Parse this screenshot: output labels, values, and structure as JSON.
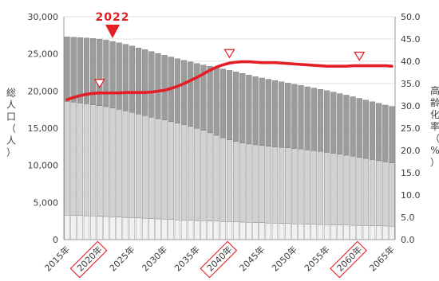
{
  "chart_data": {
    "type": "bar",
    "subtype": "stacked-bar-with-line",
    "callout_year_label": "2022",
    "highlighted_years": [
      2020,
      2040,
      2060
    ],
    "callout_year": 2022,
    "marker_years": [
      2020,
      2040,
      2060
    ],
    "y_left": {
      "label_chars": [
        "総",
        "人",
        "口",
        "（",
        "人",
        "）"
      ],
      "range": [
        0,
        30000
      ],
      "ticks": [
        "0",
        "5,000",
        "10,000",
        "15,000",
        "20,000",
        "25,000",
        "30,000"
      ]
    },
    "y_right": {
      "label_chars": [
        "高",
        "齢",
        "化",
        "率",
        "（",
        "%",
        "）"
      ],
      "range": [
        0,
        50
      ],
      "ticks": [
        "0.0",
        "5.0",
        "10.0",
        "15.0",
        "20.0",
        "25.0",
        "30.0",
        "35.0",
        "40.0",
        "45.0",
        "50.0"
      ]
    },
    "x_ticks": [
      "2015年",
      "2020年",
      "2025年",
      "2030年",
      "2035年",
      "2040年",
      "2045年",
      "2050年",
      "2055年",
      "2060年",
      "2065年"
    ],
    "years_start": 2015,
    "years_end": 2065,
    "series": [
      {
        "role": "age-0-14",
        "color": "#f1f1f1",
        "values": [
          3300,
          3270,
          3240,
          3210,
          3180,
          3150,
          3110,
          3070,
          3030,
          2990,
          2950,
          2910,
          2870,
          2830,
          2790,
          2750,
          2710,
          2670,
          2630,
          2600,
          2570,
          2540,
          2510,
          2480,
          2450,
          2420,
          2390,
          2360,
          2330,
          2300,
          2270,
          2240,
          2210,
          2190,
          2160,
          2130,
          2110,
          2080,
          2060,
          2040,
          2010,
          1990,
          1970,
          1950,
          1930,
          1910,
          1890,
          1870,
          1850,
          1830,
          1810
        ]
      },
      {
        "role": "age-15-64",
        "color": "#d2d2d2",
        "values": [
          15300,
          15230,
          15150,
          15070,
          14980,
          14900,
          14790,
          14650,
          14510,
          14350,
          14180,
          14000,
          13820,
          13650,
          13490,
          13340,
          13180,
          13020,
          12850,
          12640,
          12410,
          12160,
          11860,
          11560,
          11260,
          11000,
          10820,
          10660,
          10540,
          10460,
          10390,
          10330,
          10270,
          10230,
          10190,
          10130,
          10070,
          10000,
          9920,
          9830,
          9730,
          9630,
          9520,
          9410,
          9290,
          9170,
          9040,
          8900,
          8770,
          8640,
          8520
        ]
      },
      {
        "role": "age-65-plus",
        "color": "#9c9c9c",
        "values": [
          8680,
          8740,
          8800,
          8860,
          8910,
          8940,
          8950,
          8950,
          8950,
          8950,
          8930,
          8900,
          8870,
          8830,
          8780,
          8730,
          8690,
          8660,
          8640,
          8670,
          8720,
          8800,
          8960,
          9120,
          9260,
          9360,
          9360,
          9340,
          9270,
          9180,
          9090,
          9010,
          8930,
          8830,
          8720,
          8640,
          8570,
          8490,
          8420,
          8360,
          8310,
          8230,
          8160,
          8090,
          8010,
          7940,
          7860,
          7790,
          7720,
          7640,
          7570
        ]
      }
    ],
    "aging_rate": {
      "axis": "right",
      "color": "#e31e24",
      "values": [
        31.4,
        31.9,
        32.3,
        32.6,
        32.8,
        32.9,
        32.9,
        32.9,
        32.9,
        33.0,
        33.0,
        33.0,
        33.0,
        33.1,
        33.3,
        33.5,
        33.9,
        34.4,
        35.0,
        35.7,
        36.4,
        37.2,
        38.0,
        38.7,
        39.2,
        39.6,
        39.8,
        39.9,
        39.9,
        39.8,
        39.7,
        39.7,
        39.7,
        39.6,
        39.5,
        39.4,
        39.3,
        39.2,
        39.1,
        39.0,
        38.9,
        38.9,
        38.9,
        38.9,
        39.0,
        39.0,
        39.0,
        39.0,
        39.0,
        39.0,
        38.9
      ]
    },
    "grid": {
      "horizontal": true,
      "vertical": false
    }
  }
}
